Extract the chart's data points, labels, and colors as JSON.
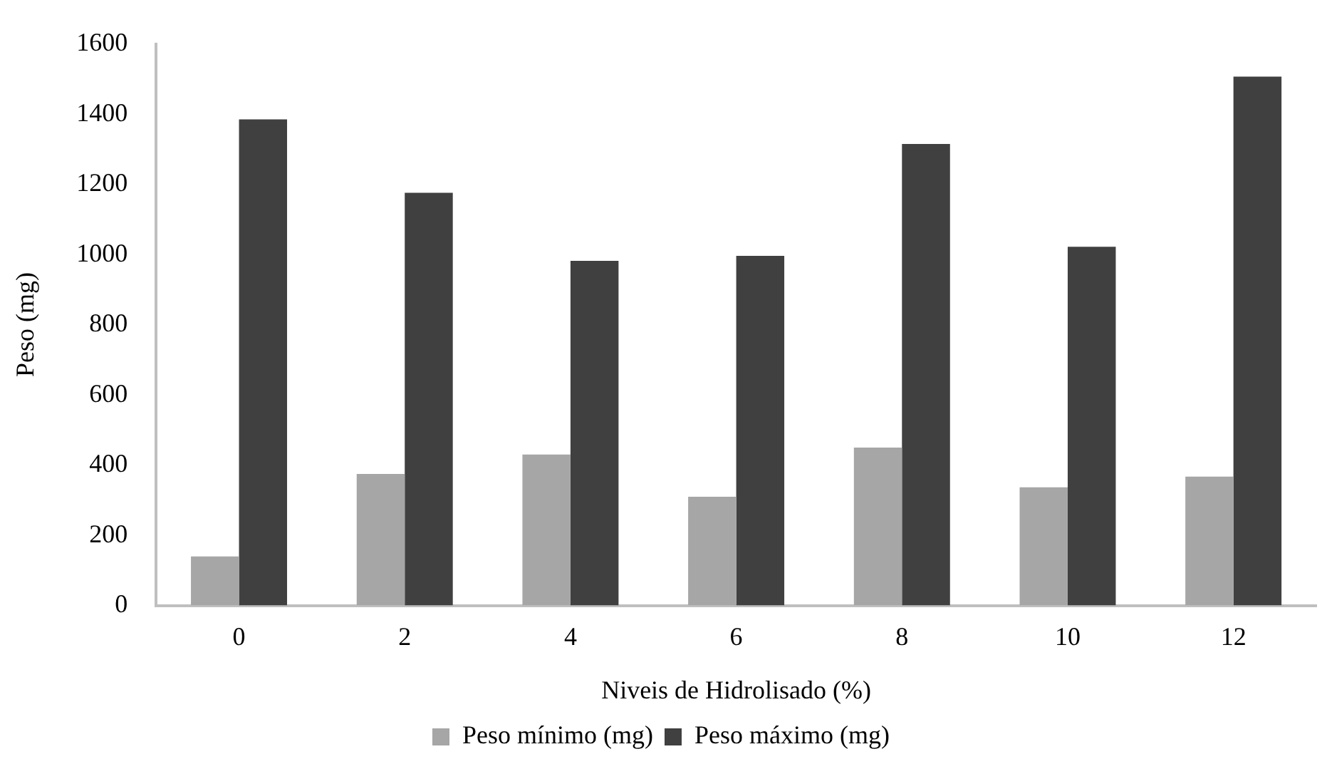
{
  "chart_data": {
    "type": "bar",
    "xlabel": "Niveis de Hidrolisado (%)",
    "ylabel": "Peso (mg)",
    "categories": [
      "0",
      "2",
      "4",
      "6",
      "8",
      "10",
      "12"
    ],
    "series": [
      {
        "name": "Peso mínimo (mg)",
        "color": "#a6a6a6",
        "values": [
          140,
          375,
          430,
          310,
          450,
          337,
          367
        ]
      },
      {
        "name": "Peso máximo (mg)",
        "color": "#404040",
        "values": [
          1385,
          1176,
          982,
          996,
          1315,
          1022,
          1507
        ]
      }
    ],
    "ylim": [
      0,
      1600
    ],
    "yticks": [
      0,
      200,
      400,
      600,
      800,
      1000,
      1200,
      1400,
      1600
    ],
    "grid": false,
    "legend": "bottom"
  }
}
